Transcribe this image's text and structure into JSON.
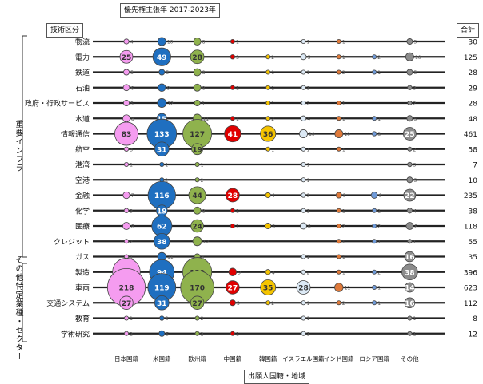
{
  "chart_data": {
    "type": "bubble-matrix",
    "title": "優先権主張年 2017-2023年",
    "row_axis_label": "技術区分",
    "column_axis_label": "出願人国籍・地域",
    "total_label": "合計",
    "groups": [
      {
        "name": "重要インフラ",
        "rows": [
          "物流",
          "電力",
          "鉄道",
          "石油",
          "政府・行政サービス",
          "水道",
          "情報通信",
          "航空",
          "港湾",
          "空港",
          "金融",
          "化学",
          "医療",
          "クレジット",
          "ガス"
        ]
      },
      {
        "name": "その他特定業種・セクター",
        "rows": [
          "製造",
          "車両",
          "交通システム",
          "教育",
          "学術研究"
        ]
      }
    ],
    "columns": [
      "日本国籍",
      "米国籍",
      "欧州籍",
      "中国籍",
      "韓国籍",
      "イスラエル国籍",
      "インド国籍",
      "ロシア国籍",
      "その他"
    ],
    "column_colors": [
      "#f59cf0",
      "#1f6fc0",
      "#8fb24d",
      "#e00000",
      "#f5c400",
      "#dce9f5",
      "#e07a3a",
      "#6f9ad8",
      "#8c8c8c"
    ],
    "rows": [
      "物流",
      "電力",
      "鉄道",
      "石油",
      "政府・行政サービス",
      "水道",
      "情報通信",
      "航空",
      "港湾",
      "空港",
      "金融",
      "化学",
      "医療",
      "クレジット",
      "ガス",
      "製造",
      "車両",
      "交通システム",
      "教育",
      "学術研究"
    ],
    "values": [
      [
        4,
        10,
        8,
        1,
        0,
        1,
        1,
        0,
        5
      ],
      [
        25,
        49,
        28,
        3,
        2,
        5,
        1,
        2,
        10
      ],
      [
        5,
        5,
        8,
        0,
        1,
        1,
        2,
        1,
        5
      ],
      [
        6,
        9,
        8,
        1,
        1,
        1,
        0,
        0,
        3
      ],
      [
        5,
        12,
        5,
        0,
        1,
        2,
        1,
        0,
        2
      ],
      [
        8,
        15,
        11,
        1,
        2,
        4,
        1,
        1,
        5
      ],
      [
        83,
        133,
        127,
        41,
        36,
        10,
        10,
        3,
        25
      ],
      [
        3,
        31,
        19,
        0,
        1,
        1,
        1,
        0,
        2
      ],
      [
        1,
        1,
        1,
        0,
        0,
        1,
        0,
        0,
        3
      ],
      [
        0,
        2,
        2,
        0,
        0,
        1,
        0,
        0,
        5
      ],
      [
        7,
        116,
        44,
        28,
        4,
        3,
        5,
        6,
        22
      ],
      [
        3,
        19,
        8,
        1,
        0,
        1,
        1,
        1,
        4
      ],
      [
        8,
        62,
        24,
        1,
        5,
        6,
        2,
        2,
        8
      ],
      [
        2,
        38,
        12,
        0,
        0,
        0,
        1,
        1,
        1
      ],
      [
        1,
        11,
        5,
        0,
        0,
        1,
        1,
        0,
        16
      ],
      [
        117,
        94,
        129,
        9,
        4,
        2,
        1,
        2,
        38
      ],
      [
        218,
        119,
        170,
        27,
        35,
        28,
        11,
        1,
        14
      ],
      [
        27,
        31,
        27,
        5,
        2,
        1,
        2,
        1,
        16
      ],
      [
        1,
        3,
        2,
        0,
        0,
        1,
        0,
        0,
        1
      ],
      [
        2,
        5,
        2,
        1,
        0,
        1,
        0,
        0,
        1
      ]
    ],
    "totals": [
      30,
      125,
      28,
      29,
      28,
      48,
      461,
      58,
      7,
      10,
      235,
      38,
      118,
      55,
      35,
      396,
      623,
      112,
      8,
      12
    ],
    "label_threshold": 14
  }
}
